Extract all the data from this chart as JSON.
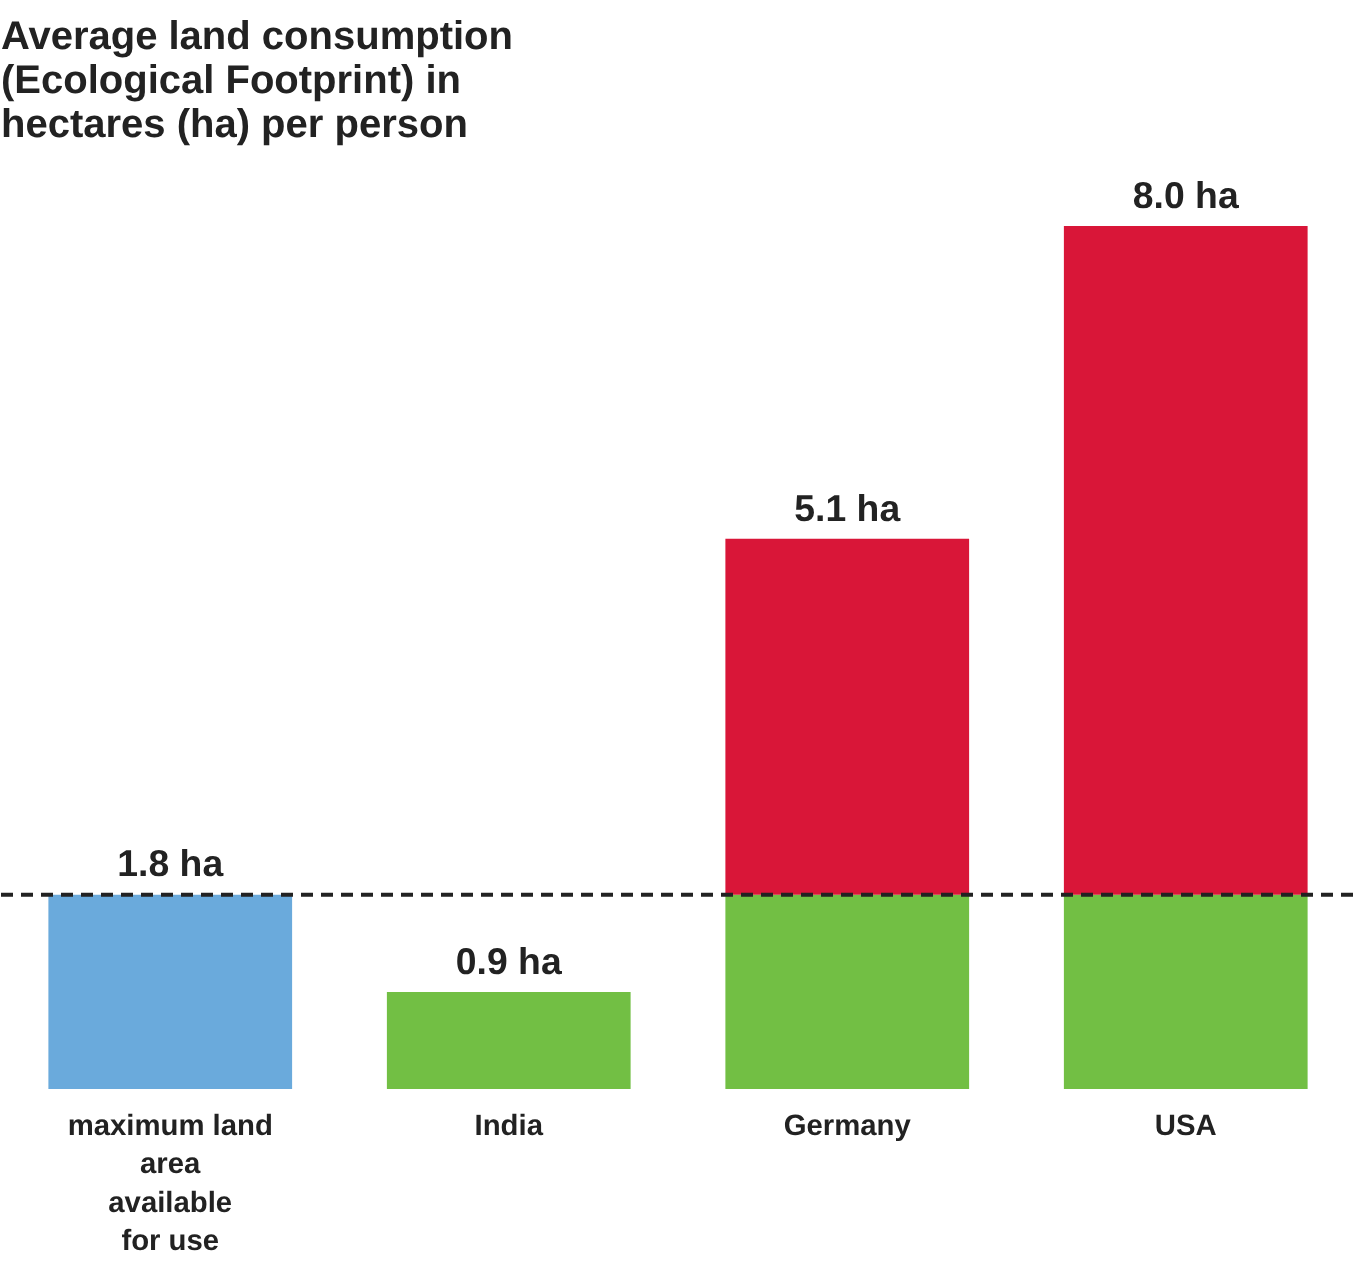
{
  "chart_data": {
    "type": "bar",
    "stacked": true,
    "title": "Average land consumption (Ecological Footprint) in hectares (ha) per person",
    "categories": [
      "maximum land area available for use",
      "India",
      "Germany",
      "USA"
    ],
    "series": [
      {
        "colors": [
          "#6aaadc",
          "#72bf44",
          "#72bf44",
          "#72bf44"
        ],
        "values": [
          1.8,
          0.9,
          1.8,
          1.8
        ],
        "value_labels": [
          "1.8 ha",
          "0.9 ha",
          null,
          null
        ]
      },
      {
        "color": "#d91638",
        "values": [
          null,
          null,
          3.3,
          6.2
        ]
      }
    ],
    "totals": [
      null,
      null,
      "5.1 ha",
      "8.0 ha"
    ],
    "ref_lines": [
      {
        "axis": "y",
        "value": 1.8,
        "line_style": "dashed",
        "color": "#222222"
      }
    ],
    "grid": false
  }
}
